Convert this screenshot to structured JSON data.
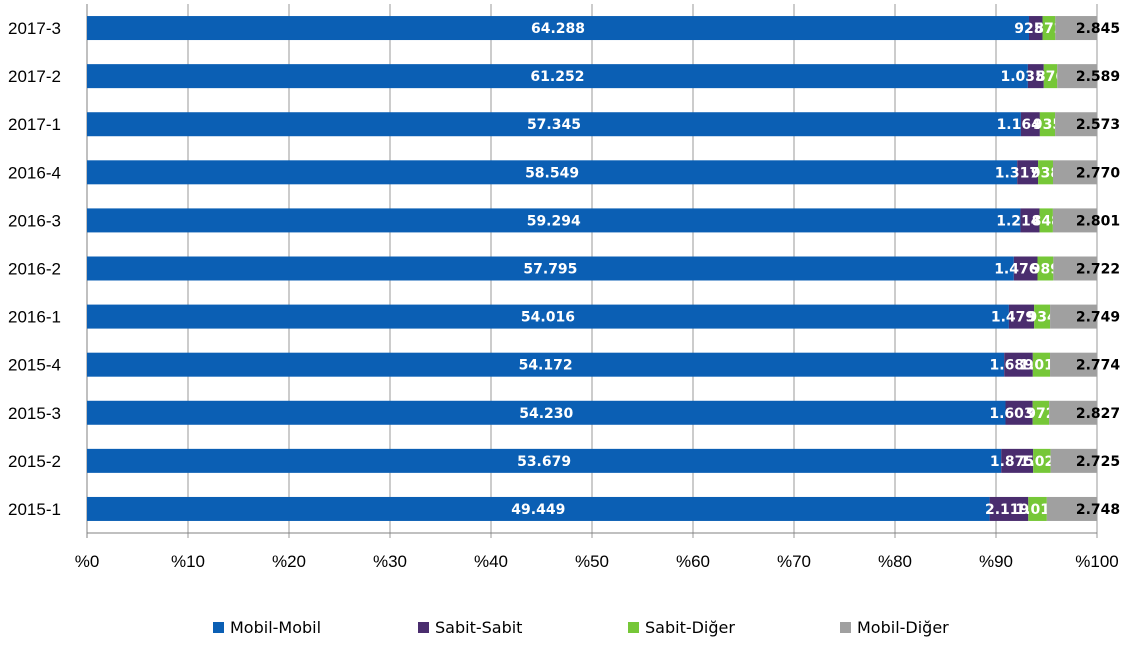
{
  "chart_data": {
    "type": "bar",
    "orientation": "horizontal",
    "stacked": "percent",
    "categories": [
      "2017-3",
      "2017-2",
      "2017-1",
      "2016-4",
      "2016-3",
      "2016-2",
      "2016-1",
      "2015-4",
      "2015-3",
      "2015-2",
      "2015-1"
    ],
    "series": [
      {
        "name": "Mobil-Mobil",
        "color": "#0B5FB4",
        "values": [
          64288,
          61252,
          57345,
          58549,
          59294,
          57795,
          54016,
          54172,
          54230,
          53679,
          49449
        ],
        "labels": [
          "64.288",
          "61.252",
          "57.345",
          "58.549",
          "59.294",
          "57.795",
          "54.016",
          "54.172",
          "54.230",
          "53.679",
          "49.449"
        ]
      },
      {
        "name": "Sabit-Sabit",
        "color": "#4A2D6E",
        "values": [
          925,
          1035,
          1164,
          1317,
          1214,
          1476,
          1479,
          1689,
          1603,
          1875,
          2119
        ],
        "labels": [
          "925",
          "1.035",
          "1.164",
          "1.317",
          "1.214",
          "1.476",
          "1.479",
          "1.689",
          "1.603",
          "1.875",
          "2.119"
        ]
      },
      {
        "name": "Sabit-Diğer",
        "color": "#76C738",
        "values": [
          872,
          876,
          935,
          938,
          848,
          989,
          934,
          1017,
          972,
          1024,
          1017
        ],
        "labels": [
          "872",
          "876",
          "935",
          "938",
          "848",
          "989",
          "934",
          "1.017",
          "972",
          "1.024",
          "1.017"
        ]
      },
      {
        "name": "Mobil-Diğer",
        "color": "#A0A0A0",
        "values": [
          2845,
          2589,
          2573,
          2770,
          2801,
          2722,
          2749,
          2774,
          2827,
          2725,
          2748
        ],
        "labels": [
          "2.845",
          "2.589",
          "2.573",
          "2.770",
          "2.801",
          "2.722",
          "2.749",
          "2.774",
          "2.827",
          "2.725",
          "2.748"
        ]
      }
    ],
    "xticks": [
      "%0",
      "%10",
      "%20",
      "%30",
      "%40",
      "%50",
      "%60",
      "%70",
      "%80",
      "%90",
      "%100"
    ],
    "xlim": [
      0,
      100
    ],
    "grid": true,
    "legend": "bottom"
  }
}
